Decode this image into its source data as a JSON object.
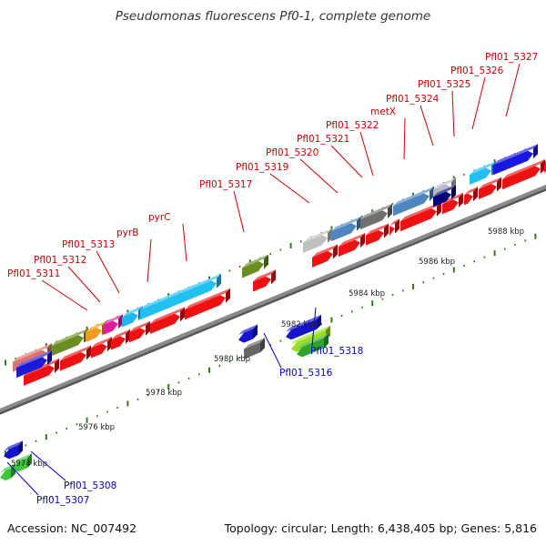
{
  "title": "Pseudomonas fluorescens Pf0-1, complete genome",
  "footer": {
    "accession": "Accession: NC_007492",
    "topology": "Topology: circular; Length: 6,438,405 bp; Genes: 5,816"
  },
  "colors": {
    "backbone": "#8a8a8a",
    "forward_label": "#cc0000",
    "reverse_label": "#0000cc",
    "tick": "#2e7d1a"
  },
  "scale_labels": [
    "5974 kbp",
    "5976 kbp",
    "5978 kbp",
    "5980 kbp",
    "5982 kbp",
    "5984 kbp",
    "5986 kbp",
    "5988 kbp"
  ],
  "labels_forward": [
    "Pfl01_5311",
    "Pfl01_5312",
    "Pfl01_5313",
    "pyrB",
    "pyrC",
    "Pfl01_5317",
    "Pfl01_5319",
    "Pfl01_5320",
    "Pfl01_5321",
    "Pfl01_5322",
    "metX",
    "Pfl01_5324",
    "Pfl01_5325",
    "Pfl01_5326",
    "Pfl01_5327"
  ],
  "labels_reverse": [
    "Pfl01_5307",
    "Pfl01_5308",
    "Pfl01_5316",
    "Pfl01_5318"
  ]
}
